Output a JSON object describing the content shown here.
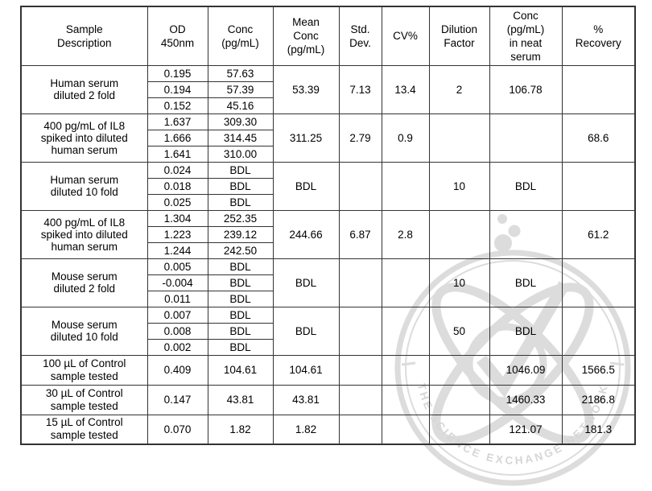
{
  "colors": {
    "table_border": "#333333",
    "watermark_gray": "#d9d9d9",
    "text": "#000000"
  },
  "watermark": {
    "ring_text": "THE SCIENCE EXCHANGE NETWORK"
  },
  "table": {
    "columns": [
      "Sample\nDescription",
      "OD\n450nm",
      "Conc\n(pg/mL)",
      "Mean\nConc\n(pg/mL)",
      "Std.\nDev.",
      "CV%",
      "Dilution\nFactor",
      "Conc\n(pg/mL)\nin neat\nserum",
      "%\nRecovery"
    ],
    "rows": [
      {
        "label": "Human serum\ndiluted 2 fold",
        "od": [
          "0.195",
          "0.194",
          "0.152"
        ],
        "conc": [
          "57.63",
          "57.39",
          "45.16"
        ],
        "mean": "53.39",
        "sd": "7.13",
        "cv": "13.4",
        "dilution": "2",
        "neat": "106.78",
        "recovery": ""
      },
      {
        "label": "400 pg/mL of IL8\nspiked into diluted\nhuman serum",
        "od": [
          "1.637",
          "1.666",
          "1.641"
        ],
        "conc": [
          "309.30",
          "314.45",
          "310.00"
        ],
        "mean": "311.25",
        "sd": "2.79",
        "cv": "0.9",
        "dilution": "",
        "neat": "",
        "recovery": "68.6"
      },
      {
        "label": "Human serum\ndiluted 10 fold",
        "od": [
          "0.024",
          "0.018",
          "0.025"
        ],
        "conc": [
          "BDL",
          "BDL",
          "BDL"
        ],
        "mean": "BDL",
        "sd": "",
        "cv": "",
        "dilution": "10",
        "neat": "BDL",
        "recovery": ""
      },
      {
        "label": "400 pg/mL of IL8\nspiked into diluted\nhuman serum",
        "od": [
          "1.304",
          "1.223",
          "1.244"
        ],
        "conc": [
          "252.35",
          "239.12",
          "242.50"
        ],
        "mean": "244.66",
        "sd": "6.87",
        "cv": "2.8",
        "dilution": "",
        "neat": "",
        "recovery": "61.2"
      },
      {
        "label": "Mouse serum\ndiluted 2 fold",
        "od": [
          "0.005",
          "-0.004",
          "0.011"
        ],
        "conc": [
          "BDL",
          "BDL",
          "BDL"
        ],
        "mean": "BDL",
        "sd": "",
        "cv": "",
        "dilution": "10",
        "neat": "BDL",
        "recovery": ""
      },
      {
        "label": "Mouse serum\ndiluted 10 fold",
        "od": [
          "0.007",
          "0.008",
          "0.002"
        ],
        "conc": [
          "BDL",
          "BDL",
          "BDL"
        ],
        "mean": "BDL",
        "sd": "",
        "cv": "",
        "dilution": "50",
        "neat": "BDL",
        "recovery": ""
      },
      {
        "label": "100 µL of Control\nsample tested",
        "od": [
          "0.409"
        ],
        "conc": [
          "104.61"
        ],
        "mean": "104.61",
        "sd": "",
        "cv": "",
        "dilution": "",
        "neat": "1046.09",
        "recovery": "1566.5"
      },
      {
        "label": "30 µL of Control\nsample tested",
        "od": [
          "0.147"
        ],
        "conc": [
          "43.81"
        ],
        "mean": "43.81",
        "sd": "",
        "cv": "",
        "dilution": "",
        "neat": "1460.33",
        "recovery": "2186.8"
      },
      {
        "label": "15 µL of Control\nsample tested",
        "od": [
          "0.070"
        ],
        "conc": [
          "1.82"
        ],
        "mean": "1.82",
        "sd": "",
        "cv": "",
        "dilution": "",
        "neat": "121.07",
        "recovery": "181.3"
      }
    ]
  }
}
